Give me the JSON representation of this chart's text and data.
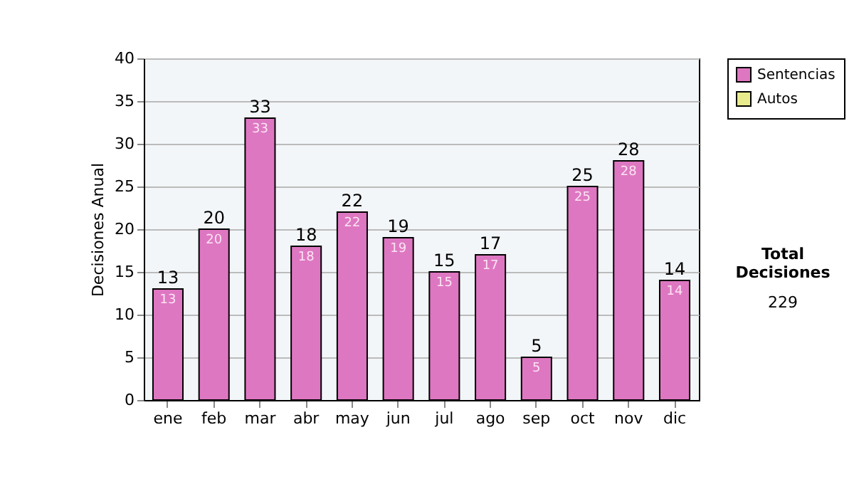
{
  "chart_data": {
    "type": "bar",
    "ylabel": "Decisiones Anual",
    "categories": [
      "ene",
      "feb",
      "mar",
      "abr",
      "may",
      "jun",
      "jul",
      "ago",
      "sep",
      "oct",
      "nov",
      "dic"
    ],
    "series": [
      {
        "name": "Sentencias",
        "color": "#de77c1",
        "values": [
          13,
          20,
          33,
          18,
          22,
          19,
          15,
          17,
          5,
          25,
          28,
          14
        ]
      },
      {
        "name": "Autos",
        "color": "#e8ec8c",
        "values": [
          null,
          null,
          null,
          null,
          null,
          null,
          null,
          null,
          null,
          null,
          null,
          null
        ]
      }
    ],
    "data_labels": true,
    "totals": [
      "13",
      "20",
      "33",
      "18",
      "22",
      "19",
      "15",
      "17",
      "5",
      "25",
      "28",
      "14"
    ],
    "ylim": [
      0,
      40
    ],
    "yticks": [
      0,
      5,
      10,
      15,
      20,
      25,
      30,
      35,
      40
    ],
    "grid": "y",
    "legend": "right",
    "annotations": [
      "Total Decisiones",
      "229"
    ]
  }
}
